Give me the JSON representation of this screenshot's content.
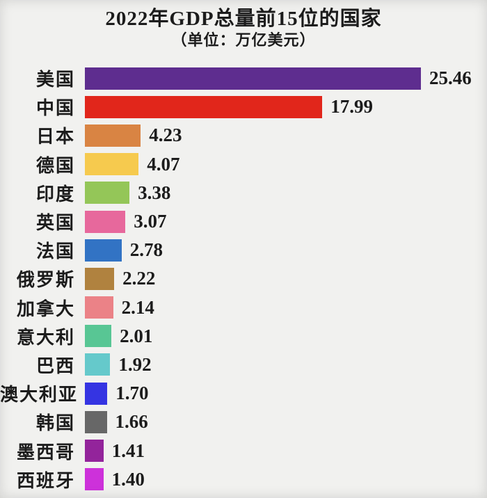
{
  "page": {
    "background_color": "#f1f1ef",
    "text_color": "#1c1c1c"
  },
  "header": {
    "title": "2022年GDP总量前15位的国家",
    "subtitle": "（单位：万亿美元）"
  },
  "chart_data": {
    "type": "bar",
    "orientation": "horizontal",
    "title": "2022年GDP总量前15位的国家",
    "unit_note": "（单位：万亿美元）",
    "unit": "万亿美元",
    "categories": [
      "美国",
      "中国",
      "日本",
      "德国",
      "印度",
      "英国",
      "法国",
      "俄罗斯",
      "加拿大",
      "意大利",
      "巴西",
      "澳大利亚",
      "韩国",
      "墨西哥",
      "西班牙"
    ],
    "values": [
      25.46,
      17.99,
      4.23,
      4.07,
      3.38,
      3.07,
      2.78,
      2.22,
      2.14,
      2.01,
      1.92,
      1.7,
      1.66,
      1.41,
      1.4
    ],
    "bar_colors": [
      "#5e2d8f",
      "#e1261b",
      "#d98443",
      "#f6ca4e",
      "#94c658",
      "#e7689c",
      "#3273c4",
      "#b0823f",
      "#eb8287",
      "#58c694",
      "#65c9cb",
      "#3534e2",
      "#676767",
      "#93249b",
      "#cd31da"
    ],
    "value_label_decimals": 2,
    "value_labels_shown": true,
    "xlim": [
      0,
      26
    ],
    "grid": false,
    "legend": false,
    "axes_shown": false,
    "sort": "descending"
  }
}
